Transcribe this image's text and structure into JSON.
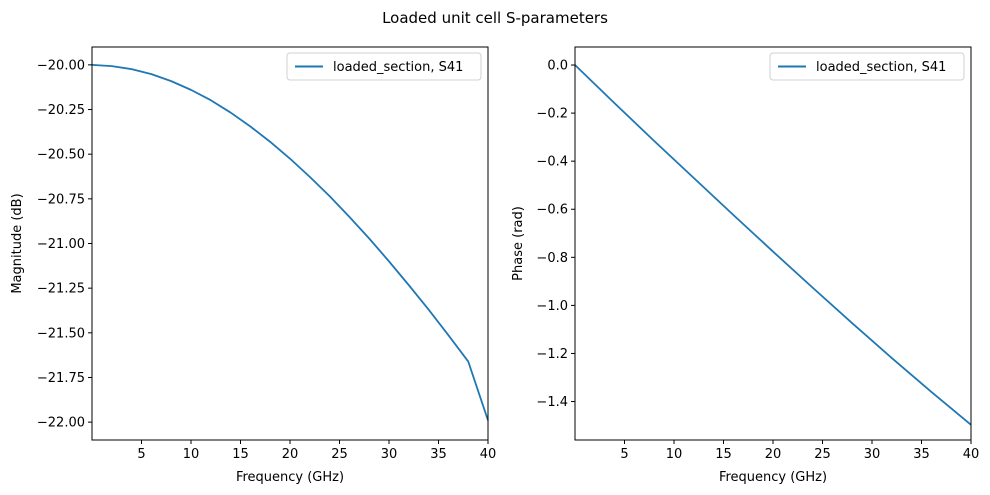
{
  "figure": {
    "title": "Loaded unit cell S-parameters"
  },
  "chart_data": [
    {
      "type": "line",
      "xlabel": "Frequency (GHz)",
      "ylabel": "Magnitude (dB)",
      "xlim": [
        0,
        40
      ],
      "ylim": [
        -22.1,
        -19.9
      ],
      "xticks": [
        5,
        10,
        15,
        20,
        25,
        30,
        35,
        40
      ],
      "xtick_labels": [
        "5",
        "10",
        "15",
        "20",
        "25",
        "30",
        "35",
        "40"
      ],
      "yticks": [
        -20.0,
        -20.25,
        -20.5,
        -20.75,
        -21.0,
        -21.25,
        -21.5,
        -21.75,
        -22.0
      ],
      "ytick_labels": [
        "−20.00",
        "−20.25",
        "−20.50",
        "−20.75",
        "−21.00",
        "−21.25",
        "−21.50",
        "−21.75",
        "−22.00"
      ],
      "legend": "upper right",
      "grid": false,
      "series": [
        {
          "name": "loaded_section, S41",
          "color": "#1f77b4",
          "x": [
            0,
            2,
            4,
            6,
            8,
            10,
            12,
            14,
            16,
            18,
            20,
            22,
            24,
            26,
            28,
            30,
            32,
            34,
            36,
            38,
            40
          ],
          "y": [
            -20.0,
            -20.007,
            -20.024,
            -20.052,
            -20.091,
            -20.14,
            -20.198,
            -20.267,
            -20.345,
            -20.431,
            -20.525,
            -20.627,
            -20.735,
            -20.851,
            -20.972,
            -21.1,
            -21.233,
            -21.37,
            -21.513,
            -21.66,
            -21.99
          ]
        }
      ]
    },
    {
      "type": "line",
      "xlabel": "Frequency (GHz)",
      "ylabel": "Phase (rad)",
      "xlim": [
        0,
        40
      ],
      "ylim": [
        -1.56,
        0.075
      ],
      "xticks": [
        5,
        10,
        15,
        20,
        25,
        30,
        35,
        40
      ],
      "xtick_labels": [
        "5",
        "10",
        "15",
        "20",
        "25",
        "30",
        "35",
        "40"
      ],
      "yticks": [
        0.0,
        -0.2,
        -0.4,
        -0.6,
        -0.8,
        -1.0,
        -1.2,
        -1.4
      ],
      "ytick_labels": [
        "0.0",
        "−0.2",
        "−0.4",
        "−0.6",
        "−0.8",
        "−1.0",
        "−1.2",
        "−1.4"
      ],
      "legend": "upper right",
      "grid": false,
      "series": [
        {
          "name": "loaded_section, S41",
          "color": "#1f77b4",
          "x": [
            0,
            4,
            8,
            12,
            16,
            20,
            24,
            28,
            32,
            36,
            40
          ],
          "y": [
            0.0,
            -0.159,
            -0.316,
            -0.47,
            -0.624,
            -0.776,
            -0.926,
            -1.074,
            -1.219,
            -1.36,
            -1.497
          ]
        }
      ]
    }
  ]
}
